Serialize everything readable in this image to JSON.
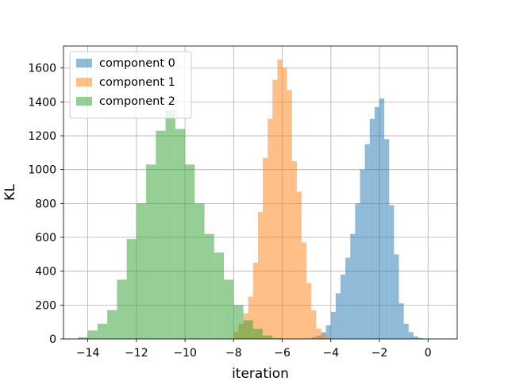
{
  "chart_data": {
    "type": "histogram",
    "xlabel": "iteration",
    "ylabel": "KL",
    "xlim": [
      -15.0,
      1.2
    ],
    "ylim": [
      0,
      1730
    ],
    "xticks": [
      -14,
      -12,
      -10,
      -8,
      -6,
      -4,
      -2,
      0
    ],
    "xtick_labels": [
      "−14",
      "−12",
      "−10",
      "−8",
      "−6",
      "−4",
      "−2",
      "0"
    ],
    "yticks": [
      0,
      200,
      400,
      600,
      800,
      1000,
      1200,
      1400,
      1600
    ],
    "ytick_labels": [
      "0",
      "200",
      "400",
      "600",
      "800",
      "1000",
      "1200",
      "1400",
      "1600"
    ],
    "grid": true,
    "legend_position": "top-left",
    "series": [
      {
        "name": "component 0",
        "color": "#1f77b4",
        "alpha": 0.5,
        "bin_start": -4.8,
        "bin_width": 0.2,
        "values": [
          10,
          20,
          40,
          80,
          160,
          270,
          380,
          480,
          620,
          800,
          1000,
          1150,
          1300,
          1370,
          1420,
          1180,
          790,
          500,
          210,
          90,
          40,
          15,
          5
        ]
      },
      {
        "name": "component 1",
        "color": "#ff7f0e",
        "alpha": 0.5,
        "bin_start": -8.0,
        "bin_width": 0.2,
        "values": [
          40,
          90,
          150,
          250,
          450,
          750,
          1070,
          1300,
          1530,
          1650,
          1600,
          1470,
          1050,
          870,
          570,
          330,
          170,
          60,
          30,
          10
        ]
      },
      {
        "name": "component 2",
        "color": "#2ca02c",
        "alpha": 0.5,
        "bin_start": -14.4,
        "bin_width": 0.4,
        "values": [
          10,
          50,
          90,
          170,
          350,
          590,
          800,
          1030,
          1230,
          1350,
          1240,
          1030,
          800,
          620,
          510,
          350,
          200,
          110,
          60,
          20,
          5
        ]
      }
    ]
  }
}
